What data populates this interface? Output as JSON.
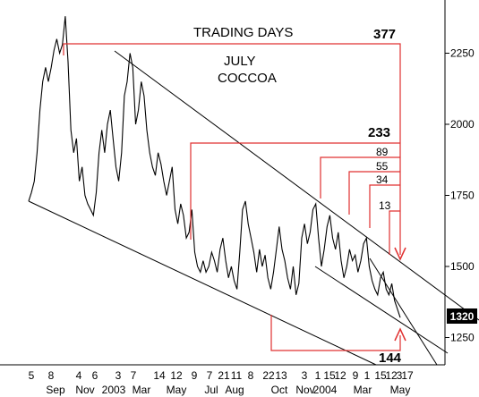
{
  "chart_data": {
    "type": "line",
    "title": "JULY COCCOA",
    "title_lines": [
      "JULY",
      "COCCOA"
    ],
    "subtitle": "TRADING DAYS",
    "ylim": [
      1150,
      2400
    ],
    "y_ticks": [
      1250,
      1500,
      1750,
      2000,
      2250
    ],
    "last_price": "1320",
    "x_labels_top": [
      "5",
      "8",
      "4",
      "6",
      "3",
      "7",
      "14",
      "12",
      "9",
      "7",
      "21",
      "11",
      "8",
      "22",
      "13",
      "3",
      "1",
      "15",
      "12",
      "9",
      "1",
      "15",
      "12",
      "3",
      "17"
    ],
    "x_labels_bottom": [
      "Sep",
      "Nov",
      "2003",
      "Mar",
      "May",
      "Jul",
      "Aug",
      "Oct",
      "Nov",
      "2004",
      "Mar",
      "May"
    ],
    "fib_counts": [
      "377",
      "233",
      "89",
      "55",
      "34",
      "13",
      "144"
    ],
    "colors": {
      "price": "#000000",
      "bracket": "#e03030",
      "trendline": "#000000"
    },
    "series": [
      {
        "values": [
          1730,
          1760,
          1800,
          1900,
          2050,
          2150,
          2200,
          2150,
          2200,
          2260,
          2300,
          2250,
          2280,
          2380,
          2220,
          1980,
          1900,
          1950,
          1800,
          1850,
          1750,
          1720,
          1700,
          1680,
          1760,
          1900,
          1980,
          1900,
          2000,
          2050,
          1950,
          1850,
          1800,
          1900,
          2100,
          2150,
          2250,
          2200,
          2000,
          2050,
          2150,
          2100,
          1980,
          1900,
          1850,
          1820,
          1900,
          1860,
          1800,
          1750,
          1800,
          1850,
          1700,
          1650,
          1720,
          1680,
          1600,
          1620,
          1700,
          1550,
          1500,
          1480,
          1520,
          1480,
          1500,
          1550,
          1520,
          1480,
          1560,
          1600,
          1520,
          1460,
          1500,
          1450,
          1420,
          1550,
          1700,
          1730,
          1650,
          1600,
          1550,
          1480,
          1560,
          1500,
          1540,
          1460,
          1420,
          1480,
          1560,
          1640,
          1560,
          1520,
          1460,
          1420,
          1500,
          1400,
          1440,
          1600,
          1650,
          1580,
          1620,
          1700,
          1720,
          1600,
          1500,
          1560,
          1640,
          1680,
          1600,
          1560,
          1620,
          1520,
          1460,
          1500,
          1560,
          1520,
          1540,
          1480,
          1520,
          1580,
          1600,
          1500,
          1450,
          1420,
          1400,
          1460,
          1480,
          1420,
          1400,
          1440,
          1380,
          1350,
          1320
        ]
      }
    ]
  }
}
